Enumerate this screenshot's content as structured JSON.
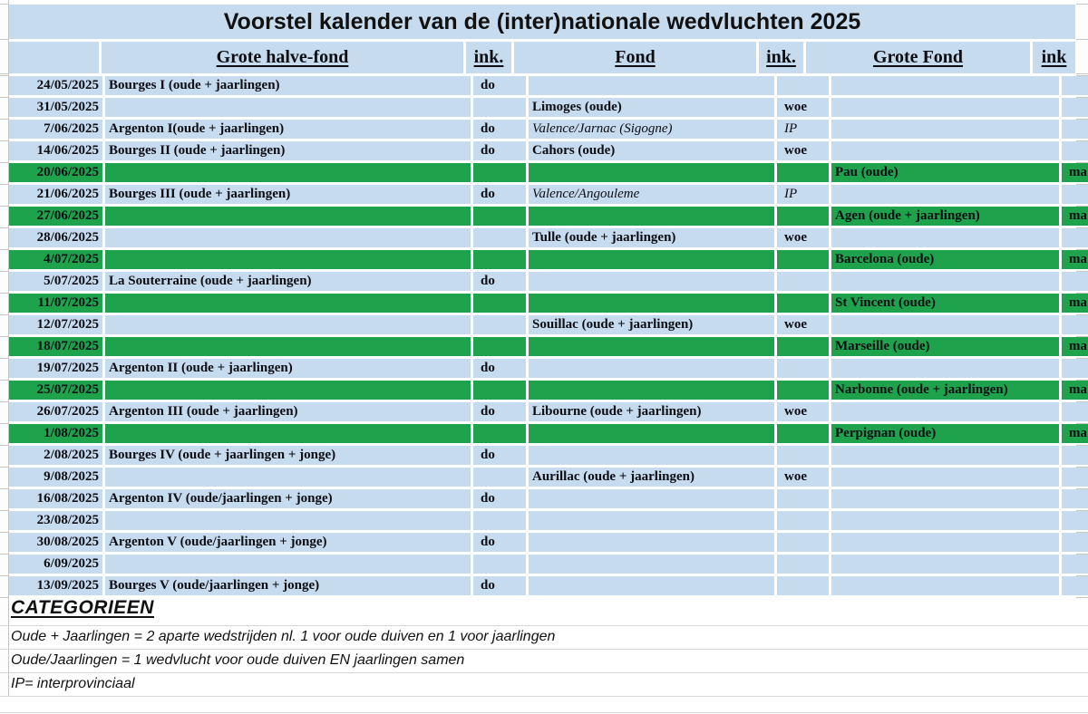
{
  "title": "Voorstel kalender van de (inter)nationale wedvluchten 2025",
  "colors": {
    "row_blue": "#c6dbee",
    "highlight_green": "#1ea24b"
  },
  "columns": {
    "date": "",
    "ghf": "Grote halve-fond",
    "ink1": "ink.",
    "fond": "Fond",
    "ink2": "ink.",
    "gf": "Grote Fond",
    "ink3": "ink"
  },
  "rows": [
    {
      "date": "24/05/2025",
      "ghf": "Bourges I (oude + jaarlingen)",
      "ink1": "do",
      "fond": "",
      "ink2": "",
      "gf": "",
      "ink3": "",
      "green": false,
      "fond_italic": false
    },
    {
      "date": "31/05/2025",
      "ghf": "",
      "ink1": "",
      "fond": "Limoges (oude)",
      "ink2": "woe",
      "gf": "",
      "ink3": "",
      "green": false,
      "fond_italic": false
    },
    {
      "date": "7/06/2025",
      "ghf": "Argenton I(oude + jaarlingen)",
      "ink1": "do",
      "fond": "Valence/Jarnac (Sigogne)",
      "ink2": "IP",
      "gf": "",
      "ink3": "",
      "green": false,
      "fond_italic": true
    },
    {
      "date": "14/06/2025",
      "ghf": "Bourges II (oude + jaarlingen)",
      "ink1": "do",
      "fond": "Cahors (oude)",
      "ink2": "woe",
      "gf": "",
      "ink3": "",
      "green": false,
      "fond_italic": false
    },
    {
      "date": "20/06/2025",
      "ghf": "",
      "ink1": "",
      "fond": "",
      "ink2": "",
      "gf": "Pau (oude)",
      "ink3": "ma",
      "green": true,
      "fond_italic": false
    },
    {
      "date": "21/06/2025",
      "ghf": "Bourges III (oude + jaarlingen)",
      "ink1": "do",
      "fond": "Valence/Angouleme",
      "ink2": "IP",
      "gf": "",
      "ink3": "",
      "green": false,
      "fond_italic": true
    },
    {
      "date": "27/06/2025",
      "ghf": "",
      "ink1": "",
      "fond": "",
      "ink2": "",
      "gf": "Agen (oude + jaarlingen)",
      "ink3": "ma",
      "green": true,
      "fond_italic": false
    },
    {
      "date": "28/06/2025",
      "ghf": "",
      "ink1": "",
      "fond": "Tulle (oude + jaarlingen)",
      "ink2": "woe",
      "gf": "",
      "ink3": "",
      "green": false,
      "fond_italic": false
    },
    {
      "date": "4/07/2025",
      "ghf": "",
      "ink1": "",
      "fond": "",
      "ink2": "",
      "gf": "Barcelona (oude)",
      "ink3": "ma",
      "green": true,
      "fond_italic": false
    },
    {
      "date": "5/07/2025",
      "ghf": "La Souterraine (oude + jaarlingen)",
      "ink1": "do",
      "fond": "",
      "ink2": "",
      "gf": "",
      "ink3": "",
      "green": false,
      "fond_italic": false
    },
    {
      "date": "11/07/2025",
      "ghf": "",
      "ink1": "",
      "fond": "",
      "ink2": "",
      "gf": "St Vincent (oude)",
      "ink3": "ma",
      "green": true,
      "fond_italic": false
    },
    {
      "date": "12/07/2025",
      "ghf": "",
      "ink1": "",
      "fond": "Souillac (oude + jaarlingen)",
      "ink2": "woe",
      "gf": "",
      "ink3": "",
      "green": false,
      "fond_italic": false
    },
    {
      "date": "18/07/2025",
      "ghf": "",
      "ink1": "",
      "fond": "",
      "ink2": "",
      "gf": "Marseille (oude)",
      "ink3": "ma",
      "green": true,
      "fond_italic": false
    },
    {
      "date": "19/07/2025",
      "ghf": "Argenton II (oude + jaarlingen)",
      "ink1": "do",
      "fond": "",
      "ink2": "",
      "gf": "",
      "ink3": "",
      "green": false,
      "fond_italic": false
    },
    {
      "date": "25/07/2025",
      "ghf": "",
      "ink1": "",
      "fond": "",
      "ink2": "",
      "gf": "Narbonne (oude + jaarlingen)",
      "ink3": "ma",
      "green": true,
      "fond_italic": false
    },
    {
      "date": "26/07/2025",
      "ghf": "Argenton III (oude + jaarlingen)",
      "ink1": "do",
      "fond": "Libourne (oude + jaarlingen)",
      "ink2": "woe",
      "gf": "",
      "ink3": "",
      "green": false,
      "fond_italic": false
    },
    {
      "date": "1/08/2025",
      "ghf": "",
      "ink1": "",
      "fond": "",
      "ink2": "",
      "gf": "Perpignan (oude)",
      "ink3": "ma",
      "green": true,
      "fond_italic": false
    },
    {
      "date": "2/08/2025",
      "ghf": "Bourges IV (oude + jaarlingen + jonge)",
      "ink1": "do",
      "fond": "",
      "ink2": "",
      "gf": "",
      "ink3": "",
      "green": false,
      "fond_italic": false
    },
    {
      "date": "9/08/2025",
      "ghf": "",
      "ink1": "",
      "fond": "Aurillac (oude + jaarlingen)",
      "ink2": "woe",
      "gf": "",
      "ink3": "",
      "green": false,
      "fond_italic": false
    },
    {
      "date": "16/08/2025",
      "ghf": "Argenton IV  (oude/jaarlingen + jonge)",
      "ink1": "do",
      "fond": "",
      "ink2": "",
      "gf": "",
      "ink3": "",
      "green": false,
      "fond_italic": false
    },
    {
      "date": "23/08/2025",
      "ghf": "",
      "ink1": "",
      "fond": "",
      "ink2": "",
      "gf": "",
      "ink3": "",
      "green": false,
      "fond_italic": false
    },
    {
      "date": "30/08/2025",
      "ghf": "Argenton V (oude/jaarlingen + jonge)",
      "ink1": "do",
      "fond": "",
      "ink2": "",
      "gf": "",
      "ink3": "",
      "green": false,
      "fond_italic": false
    },
    {
      "date": "6/09/2025",
      "ghf": "",
      "ink1": "",
      "fond": "",
      "ink2": "",
      "gf": "",
      "ink3": "",
      "green": false,
      "fond_italic": false
    },
    {
      "date": "13/09/2025",
      "ghf": "Bourges V (oude/jaarlingen + jonge)",
      "ink1": "do",
      "fond": "",
      "ink2": "",
      "gf": "",
      "ink3": "",
      "green": false,
      "fond_italic": false
    }
  ],
  "footer": {
    "heading": "CATEGORIEEN",
    "notes": [
      "Oude + Jaarlingen = 2 aparte wedstrijden nl. 1 voor oude duiven en 1 voor jaarlingen",
      "Oude/Jaarlingen = 1 wedvlucht voor oude duiven EN jaarlingen samen",
      "IP= interprovinciaal"
    ]
  }
}
